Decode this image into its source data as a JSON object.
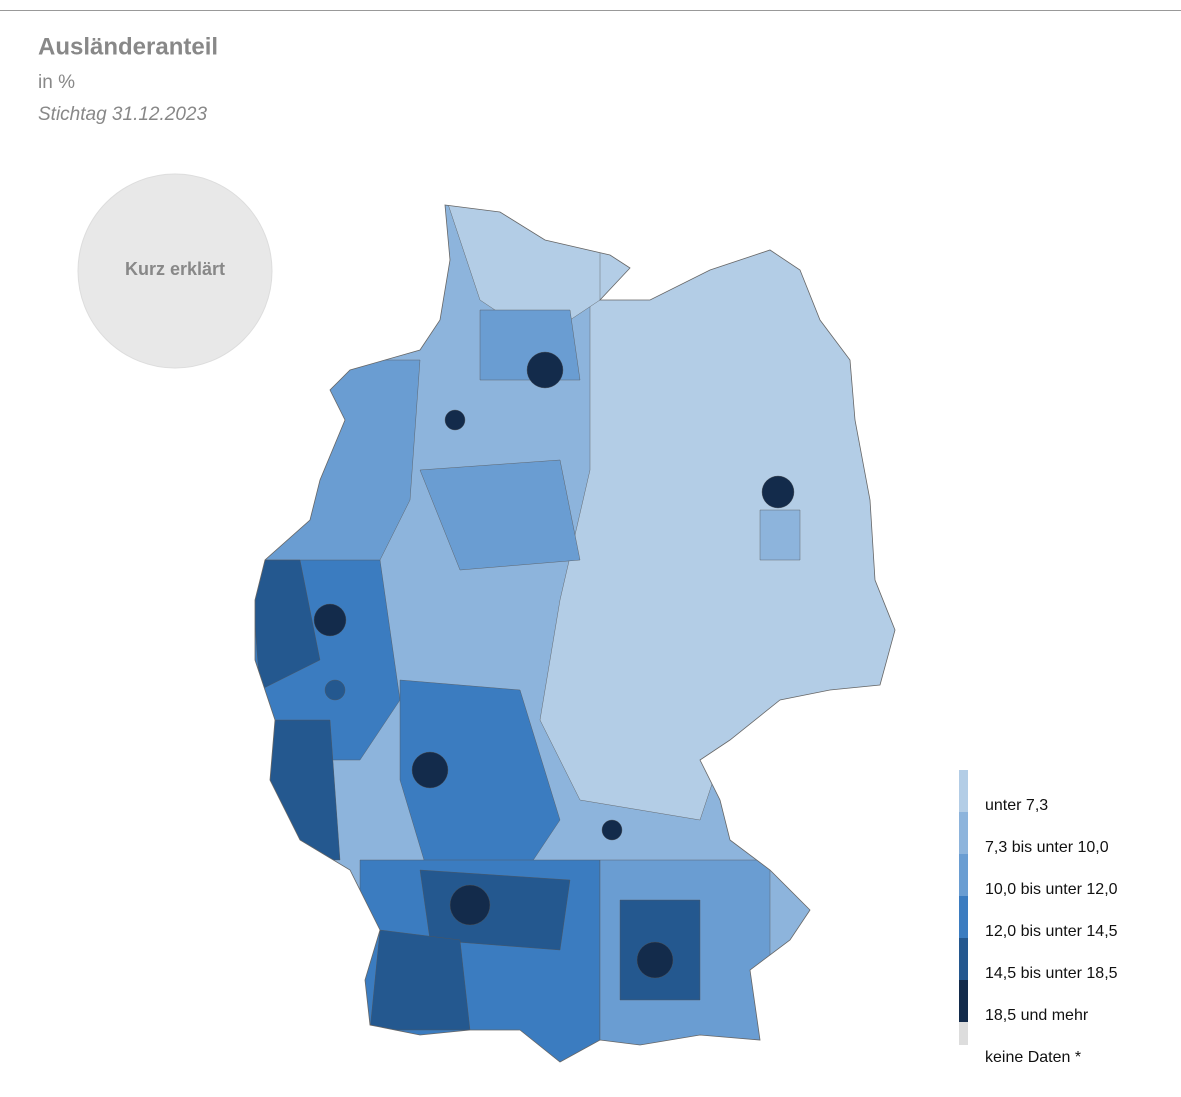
{
  "header": {
    "title": "Ausländeranteil",
    "unit": "in %",
    "date": "Stichtag 31.12.2023"
  },
  "button": "Kurz erklärt",
  "legend": [
    {
      "label": "unter 7,3",
      "color": "#b3cde6"
    },
    {
      "label": "7,3 bis unter 10,0",
      "color": "#8db4dc"
    },
    {
      "label": "10,0 bis unter 12,0",
      "color": "#6a9dd2"
    },
    {
      "label": "12,0 bis unter 14,5",
      "color": "#3b7cc0"
    },
    {
      "label": "14,5 bis unter 18,5",
      "color": "#24588f"
    },
    {
      "label": "18,5 und mehr",
      "color": "#132b4b"
    },
    {
      "label": "keine Daten *",
      "color": "#dddddd"
    }
  ]
}
